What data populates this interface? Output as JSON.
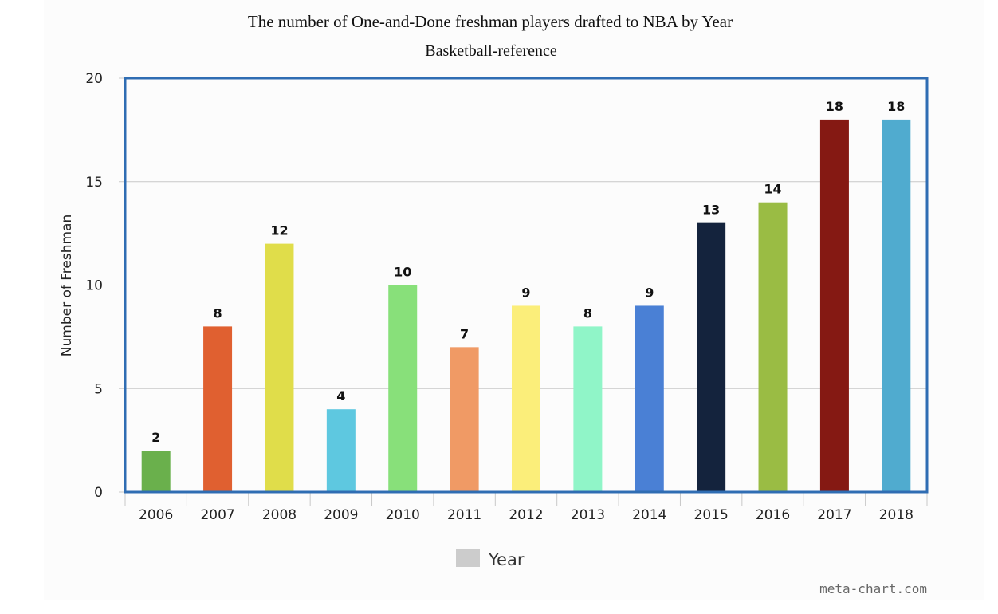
{
  "chart_data": {
    "type": "bar",
    "title": "The number of One-and-Done freshman players drafted to NBA by Year",
    "subtitle": "Basketball-reference",
    "xlabel": "",
    "ylabel": "Number of Freshman",
    "ylim": [
      0,
      20
    ],
    "yticks": [
      0,
      5,
      10,
      15,
      20
    ],
    "grid": true,
    "categories": [
      "2006",
      "2007",
      "2008",
      "2009",
      "2010",
      "2011",
      "2012",
      "2013",
      "2014",
      "2015",
      "2016",
      "2017",
      "2018"
    ],
    "series": [
      {
        "name": "Year",
        "values": [
          2,
          8,
          12,
          4,
          10,
          7,
          9,
          8,
          9,
          13,
          14,
          18,
          18
        ]
      }
    ],
    "bar_colors": [
      "#6ab04c",
      "#e06030",
      "#e0dd4a",
      "#5ec8e0",
      "#88e07a",
      "#f09a65",
      "#fbee7a",
      "#90f5c8",
      "#4a80d5",
      "#14233d",
      "#9abc44",
      "#851913",
      "#50abcf"
    ],
    "legend": {
      "position": "bottom",
      "label": "Year",
      "swatch_color": "#cccccc"
    },
    "credit": "meta-chart.com"
  }
}
